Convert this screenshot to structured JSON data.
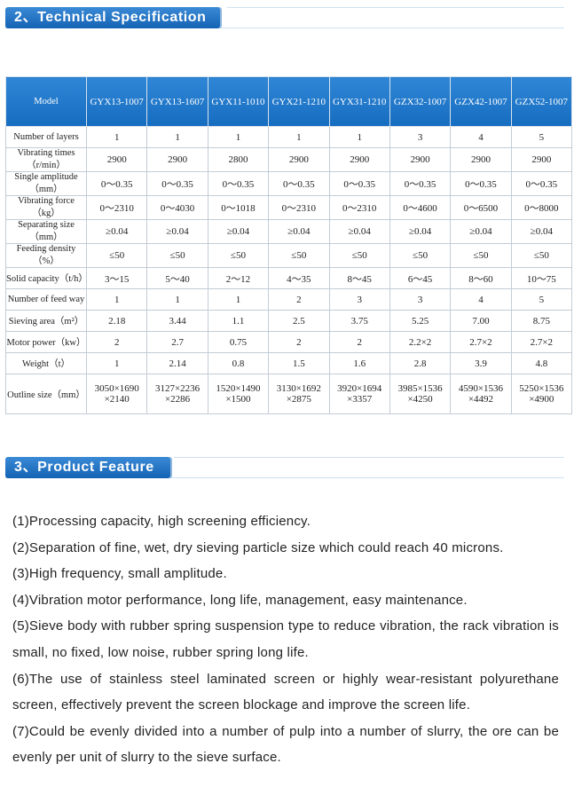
{
  "sections": [
    {
      "title": "2、Technical Specification"
    },
    {
      "title": "3、Product Feature"
    }
  ],
  "table": {
    "header": [
      "Model",
      "GYX13-1007",
      "GYX13-1607",
      "GYX11-1010",
      "GYX21-1210",
      "GYX31-1210",
      "GZX32-1007",
      "GZX42-1007",
      "GZX52-1007"
    ],
    "rows": [
      [
        "Number of layers",
        "1",
        "1",
        "1",
        "1",
        "1",
        "3",
        "4",
        "5"
      ],
      [
        "Vibrating times（r/min）",
        "2900",
        "2900",
        "2800",
        "2900",
        "2900",
        "2900",
        "2900",
        "2900"
      ],
      [
        "Single amplitude（mm）",
        "0～0.35",
        "0～0.35",
        "0～0.35",
        "0～0.35",
        "0～0.35",
        "0～0.35",
        "0～0.35",
        "0～0.35"
      ],
      [
        "Vibrating force（kg）",
        "0～2310",
        "0～4030",
        "0～1018",
        "0～2310",
        "0～2310",
        "0～4600",
        "0～6500",
        "0～8000"
      ],
      [
        "Separating size（mm）",
        "≥0.04",
        "≥0.04",
        "≥0.04",
        "≥0.04",
        "≥0.04",
        "≥0.04",
        "≥0.04",
        "≥0.04"
      ],
      [
        "Feeding density（%）",
        "≤50",
        "≤50",
        "≤50",
        "≤50",
        "≤50",
        "≤50",
        "≤50",
        "≤50"
      ],
      [
        "Solid capacity（t/h）",
        "3～15",
        "5～40",
        "2～12",
        "4～35",
        "8～45",
        "6～45",
        "8～60",
        "10～75"
      ],
      [
        "Number of feed way",
        "1",
        "1",
        "1",
        "2",
        "3",
        "3",
        "4",
        "5"
      ],
      [
        "Sieving area（m²）",
        "2.18",
        "3.44",
        "1.1",
        "2.5",
        "3.75",
        "5.25",
        "7.00",
        "8.75"
      ],
      [
        "Motor power（kw）",
        "2",
        "2.7",
        "0.75",
        "2",
        "2",
        "2.2×2",
        "2.7×2",
        "2.7×2"
      ],
      [
        "Weight（t）",
        "1",
        "2.14",
        "0.8",
        "1.5",
        "1.6",
        "2.8",
        "3.9",
        "4.8"
      ],
      [
        "Outline size（mm）",
        [
          "3050×1690",
          "×2140"
        ],
        [
          "3127×2236",
          "×2286"
        ],
        [
          "1520×1490",
          "×1500"
        ],
        [
          "3130×1692",
          "×2875"
        ],
        [
          "3920×1694",
          "×3357"
        ],
        [
          "3985×1536",
          "×4250"
        ],
        [
          "4590×1536",
          "×4492"
        ],
        [
          "5250×1536",
          "×4900"
        ]
      ]
    ]
  },
  "features": [
    "(1)Processing capacity, high screening efficiency.",
    "(2)Separation of fine, wet, dry sieving particle size which could reach 40 microns.",
    "(3)High frequency, small amplitude.",
    "(4)Vibration motor performance, long life, management, easy maintenance.",
    "(5)Sieve body with rubber spring suspension type to reduce vibration, the rack vibration is small, no fixed, low noise, rubber spring long life.",
    "(6)The use of stainless steel laminated screen or highly wear-resistant polyurethane screen, effectively prevent the screen blockage and improve the screen life.",
    "(7)Could be evenly divided into a number of pulp into a number of slurry, the ore can be evenly per unit of slurry to the sieve surface."
  ]
}
